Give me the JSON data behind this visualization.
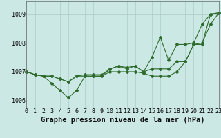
{
  "title": "Graphe pression niveau de la mer (hPa)",
  "background_color": "#cce8e4",
  "line_color": "#2d6b2d",
  "grid_color": "#aaccc8",
  "x": [
    0,
    1,
    2,
    3,
    4,
    5,
    6,
    7,
    8,
    9,
    10,
    11,
    12,
    13,
    14,
    15,
    16,
    17,
    18,
    19,
    20,
    21,
    22,
    23
  ],
  "y_line1": [
    1007.0,
    1006.9,
    1006.85,
    1006.85,
    1006.75,
    1006.65,
    1006.85,
    1006.9,
    1006.9,
    1006.9,
    1007.1,
    1007.2,
    1007.15,
    1007.2,
    1007.0,
    1007.5,
    1008.2,
    1007.4,
    1007.95,
    1007.95,
    1008.0,
    1008.65,
    1009.0,
    1009.05
  ],
  "y_line2": [
    1007.0,
    1006.9,
    1006.85,
    1006.6,
    1006.35,
    1006.1,
    1006.35,
    1006.85,
    1006.85,
    1006.85,
    1007.0,
    1007.0,
    1007.0,
    1007.0,
    1006.95,
    1006.85,
    1006.85,
    1006.85,
    1007.0,
    1007.35,
    1007.95,
    1007.95,
    1009.0,
    1009.05
  ],
  "y_line3": [
    1007.0,
    1006.9,
    1006.85,
    1006.85,
    1006.75,
    1006.65,
    1006.85,
    1006.85,
    1006.85,
    1006.85,
    1007.1,
    1007.2,
    1007.1,
    1007.2,
    1007.0,
    1007.1,
    1007.1,
    1007.1,
    1007.35,
    1007.35,
    1007.95,
    1008.0,
    1008.65,
    1009.05
  ],
  "ylim": [
    1005.75,
    1009.45
  ],
  "yticks": [
    1006,
    1007,
    1008,
    1009
  ],
  "xticks": [
    0,
    1,
    2,
    3,
    4,
    5,
    6,
    7,
    8,
    9,
    10,
    11,
    12,
    13,
    14,
    15,
    16,
    17,
    18,
    19,
    20,
    21,
    22,
    23
  ],
  "title_fontsize": 7.5,
  "tick_fontsize": 6.0
}
